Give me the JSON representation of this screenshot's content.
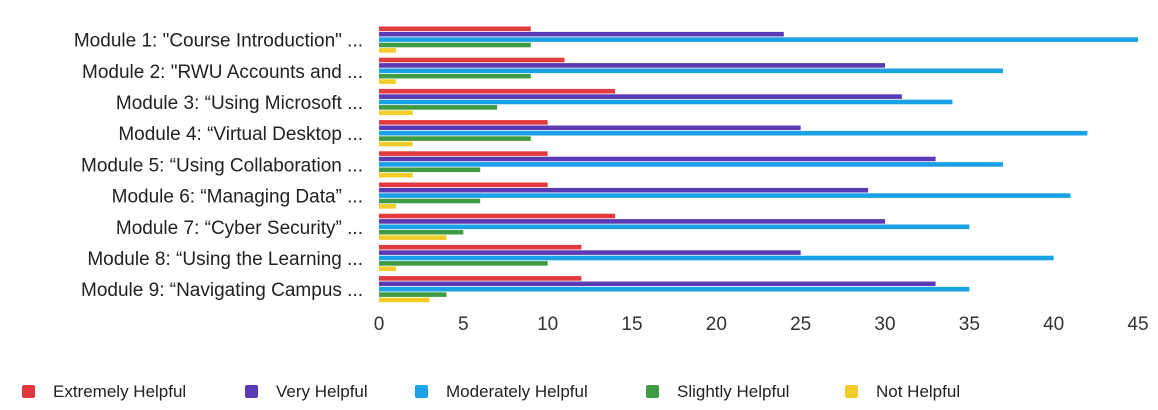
{
  "chart_data": {
    "type": "bar",
    "orientation": "horizontal",
    "title": "",
    "xlabel": "",
    "ylabel": "",
    "xlim": [
      0,
      45
    ],
    "x_ticks": [
      0,
      5,
      10,
      15,
      20,
      25,
      30,
      35,
      40,
      45
    ],
    "grid": false,
    "legend_position": "bottom",
    "categories": [
      "Module 1: \"Course Introduction\" ...",
      "Module 2: \"RWU Accounts and ...",
      "Module 3: “Using Microsoft ...",
      "Module 4: “Virtual Desktop ...",
      "Module 5: “Using Collaboration ...",
      "Module 6: “Managing Data” ...",
      "Module 7: “Cyber Security” ...",
      "Module 8: “Using the Learning ...",
      "Module 9: “Navigating Campus ..."
    ],
    "series": [
      {
        "name": "Extremely Helpful",
        "color": "#e03a3e",
        "values": [
          9,
          11,
          14,
          10,
          10,
          10,
          14,
          12,
          12
        ]
      },
      {
        "name": "Very Helpful",
        "color": "#5b3bb5",
        "values": [
          24,
          30,
          31,
          25,
          33,
          29,
          30,
          25,
          33
        ]
      },
      {
        "name": "Moderately Helpful",
        "color": "#1aa1e6",
        "values": [
          45,
          37,
          34,
          42,
          37,
          41,
          35,
          40,
          35
        ]
      },
      {
        "name": "Slightly Helpful",
        "color": "#3f9b45",
        "values": [
          9,
          9,
          7,
          9,
          6,
          6,
          5,
          10,
          4
        ]
      },
      {
        "name": "Not Helpful",
        "color": "#f2cc2a",
        "values": [
          1,
          1,
          2,
          2,
          2,
          1,
          4,
          1,
          3
        ]
      }
    ]
  }
}
